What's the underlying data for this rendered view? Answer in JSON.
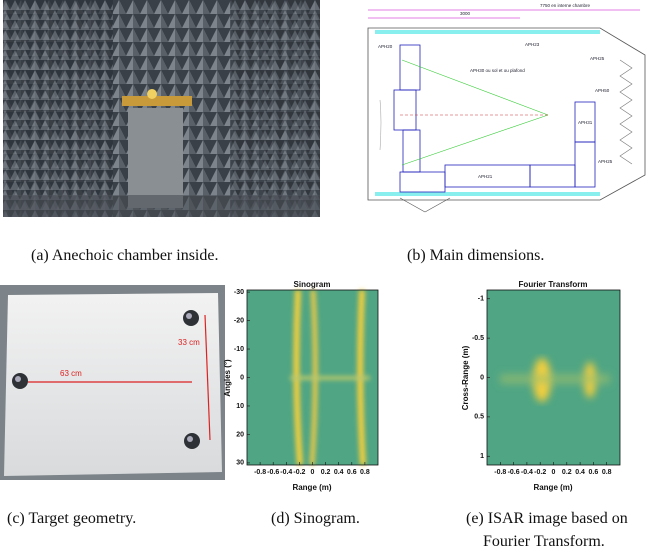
{
  "panels": [
    {
      "caption": "(a) Anechoic chamber inside."
    },
    {
      "caption": "(b) Main dimensions.",
      "labels": [
        "7750 en interne chambre",
        "3000",
        "APH20",
        "APH23",
        "APH25",
        "APH50",
        "APH30 ou sol et ou plafond",
        "APH31",
        "APH21",
        "APH25"
      ]
    },
    {
      "caption": "(c) Target geometry.",
      "labels": [
        "63 cm",
        "33 cm"
      ]
    },
    {
      "caption": "(d) Sinogram.",
      "title": "Sinogram",
      "xlabel": "Range (m)",
      "ylabel": "Angles (°)",
      "xticks": [
        -0.8,
        -0.6,
        -0.4,
        -0.2,
        0,
        0.2,
        0.4,
        0.6,
        0.8
      ],
      "yticks": [
        -30,
        -20,
        -10,
        0,
        10,
        20,
        30
      ]
    },
    {
      "caption": [
        "(e) ISAR image based on",
        "Fourier Transform."
      ],
      "title": "Fourier Transform",
      "xlabel": "Range (m)",
      "ylabel": "Cross-Range (m)",
      "xticks": [
        -0.8,
        -0.6,
        -0.4,
        -0.2,
        0,
        0.2,
        0.4,
        0.6,
        0.8
      ],
      "yticks": [
        -1,
        -0.5,
        0,
        0.5,
        1
      ]
    }
  ]
}
